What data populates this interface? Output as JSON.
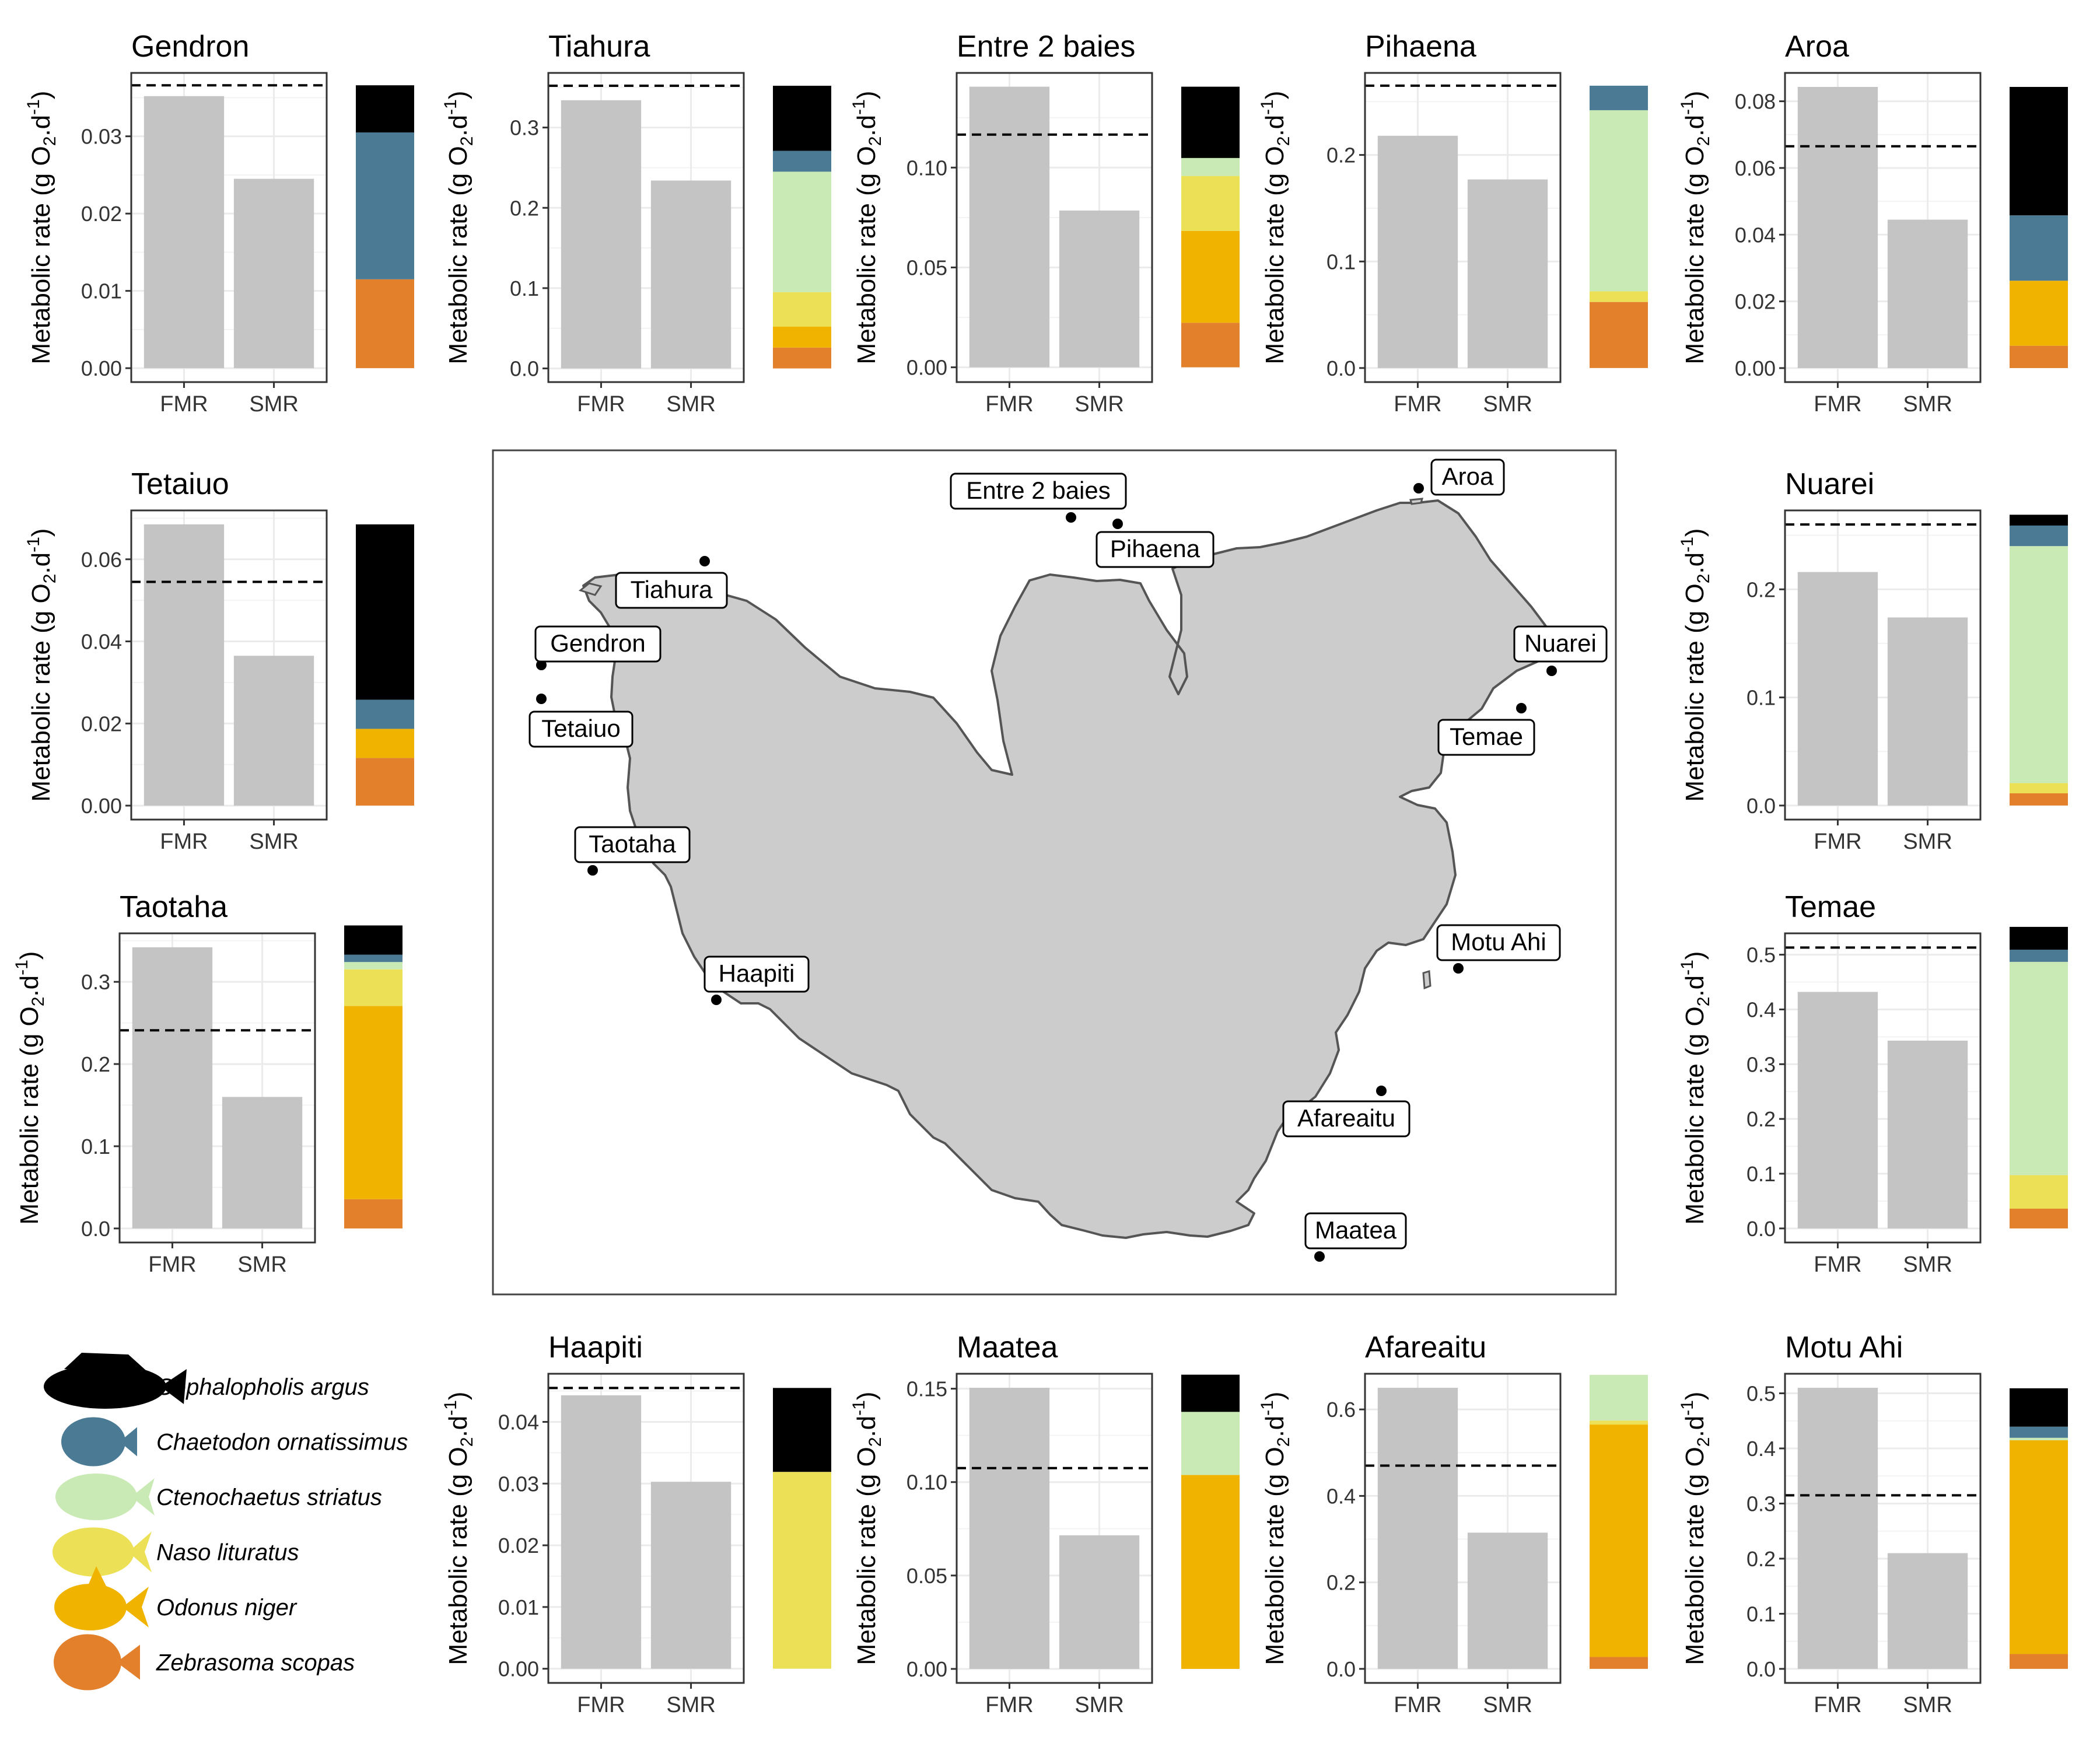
{
  "colors": {
    "cephalopholis_argus": "#000000",
    "chaetodon_ornatissimus": "#4a7a94",
    "ctenochaetus_striatus": "#c9eab4",
    "naso_lituratus": "#ece056",
    "odonus_niger": "#f0b400",
    "zebrasoma_scopas": "#e2802c",
    "bar_fill": "#c4c4c4",
    "land_fill": "#cccccc",
    "land_stroke": "#555555"
  },
  "legend": {
    "items": [
      {
        "name": "Cephalopholis argus",
        "key": "cephalopholis_argus",
        "icon": "grouper-icon"
      },
      {
        "name": "Chaetodon ornatissimus",
        "key": "chaetodon_ornatissimus",
        "icon": "butterflyfish-icon"
      },
      {
        "name": "Ctenochaetus striatus",
        "key": "ctenochaetus_striatus",
        "icon": "surgeonfish-icon"
      },
      {
        "name": "Naso lituratus",
        "key": "naso_lituratus",
        "icon": "unicornfish-icon"
      },
      {
        "name": "Odonus niger",
        "key": "odonus_niger",
        "icon": "triggerfish-icon"
      },
      {
        "name": "Zebrasoma scopas",
        "key": "zebrasoma_scopas",
        "icon": "tang-icon"
      }
    ]
  },
  "map": {
    "sites": [
      "Entre 2 baies",
      "Aroa",
      "Pihaena",
      "Tiahura",
      "Gendron",
      "Tetaiuo",
      "Nuarei",
      "Temae",
      "Taotaha",
      "Haapiti",
      "Motu Ahi",
      "Afareaitu",
      "Maatea"
    ]
  },
  "chart_data": [
    {
      "type": "bar",
      "title": "Gendron",
      "categories": [
        "FMR",
        "SMR"
      ],
      "values": [
        0.0352,
        0.0245
      ],
      "reference_line": 0.0366,
      "ylabel": "Metabolic rate (g O2.d-1)",
      "ylim": [
        -0.0018,
        0.0382
      ],
      "yticks": [
        0,
        0.01,
        0.02,
        0.03
      ],
      "tick_labels": [
        "0.00",
        "0.01",
        "0.02",
        "0.03"
      ],
      "composition": [
        {
          "species": "Zebrasoma scopas",
          "value": 0.0115
        },
        {
          "species": "Chaetodon ornatissimus",
          "value": 0.019
        },
        {
          "species": "Cephalopholis argus",
          "value": 0.0061
        }
      ]
    },
    {
      "type": "bar",
      "title": "Tiahura",
      "categories": [
        "FMR",
        "SMR"
      ],
      "values": [
        0.334,
        0.234
      ],
      "reference_line": 0.352,
      "ylabel": "Metabolic rate (g O2.d-1)",
      "ylim": [
        -0.017,
        0.368
      ],
      "yticks": [
        0,
        0.1,
        0.2,
        0.3
      ],
      "tick_labels": [
        "0.0",
        "0.1",
        "0.2",
        "0.3"
      ],
      "composition": [
        {
          "species": "Zebrasoma scopas",
          "value": 0.026
        },
        {
          "species": "Odonus niger",
          "value": 0.026
        },
        {
          "species": "Naso lituratus",
          "value": 0.043
        },
        {
          "species": "Ctenochaetus striatus",
          "value": 0.15
        },
        {
          "species": "Chaetodon ornatissimus",
          "value": 0.026
        },
        {
          "species": "Cephalopholis argus",
          "value": 0.081
        }
      ]
    },
    {
      "type": "bar",
      "title": "Entre 2 baies",
      "categories": [
        "FMR",
        "SMR"
      ],
      "values": [
        0.1405,
        0.0785
      ],
      "reference_line": 0.1165,
      "ylabel": "Metabolic rate (g O2.d-1)",
      "ylim": [
        -0.0074,
        0.1474
      ],
      "yticks": [
        0,
        0.05,
        0.1
      ],
      "tick_labels": [
        "0.00",
        "0.05",
        "0.10"
      ],
      "composition": [
        {
          "species": "Zebrasoma scopas",
          "value": 0.0223
        },
        {
          "species": "Odonus niger",
          "value": 0.046
        },
        {
          "species": "Naso lituratus",
          "value": 0.0275
        },
        {
          "species": "Ctenochaetus striatus",
          "value": 0.009
        },
        {
          "species": "Cephalopholis argus",
          "value": 0.0357
        }
      ]
    },
    {
      "type": "bar",
      "title": "Pihaena",
      "categories": [
        "FMR",
        "SMR"
      ],
      "values": [
        0.218,
        0.177
      ],
      "reference_line": 0.265,
      "ylabel": "Metabolic rate (g O2.d-1)",
      "ylim": [
        -0.0132,
        0.277
      ],
      "yticks": [
        0,
        0.1,
        0.2
      ],
      "tick_labels": [
        "0.0",
        "0.1",
        "0.2"
      ],
      "composition": [
        {
          "species": "Zebrasoma scopas",
          "value": 0.062
        },
        {
          "species": "Naso lituratus",
          "value": 0.01
        },
        {
          "species": "Ctenochaetus striatus",
          "value": 0.17
        },
        {
          "species": "Chaetodon ornatissimus",
          "value": 0.023
        }
      ]
    },
    {
      "type": "bar",
      "title": "Aroa",
      "categories": [
        "FMR",
        "SMR"
      ],
      "values": [
        0.0843,
        0.0445
      ],
      "reference_line": 0.0665,
      "ylabel": "Metabolic rate (g O2.d-1)",
      "ylim": [
        -0.0042,
        0.0885
      ],
      "yticks": [
        0,
        0.02,
        0.04,
        0.06,
        0.08
      ],
      "tick_labels": [
        "0.00",
        "0.02",
        "0.04",
        "0.06",
        "0.08"
      ],
      "composition": [
        {
          "species": "Zebrasoma scopas",
          "value": 0.0067
        },
        {
          "species": "Odonus niger",
          "value": 0.0195
        },
        {
          "species": "Chaetodon ornatissimus",
          "value": 0.0196
        },
        {
          "species": "Cephalopholis argus",
          "value": 0.0385
        }
      ]
    },
    {
      "type": "bar",
      "title": "Tetaiuo",
      "categories": [
        "FMR",
        "SMR"
      ],
      "values": [
        0.0685,
        0.0365
      ],
      "reference_line": 0.0545,
      "ylabel": "Metabolic rate (g O2.d-1)",
      "ylim": [
        -0.0034,
        0.0719
      ],
      "yticks": [
        0,
        0.02,
        0.04,
        0.06
      ],
      "tick_labels": [
        "0.00",
        "0.02",
        "0.04",
        "0.06"
      ],
      "composition": [
        {
          "species": "Zebrasoma scopas",
          "value": 0.0116
        },
        {
          "species": "Odonus niger",
          "value": 0.0071
        },
        {
          "species": "Chaetodon ornatissimus",
          "value": 0.0071
        },
        {
          "species": "Cephalopholis argus",
          "value": 0.0427
        }
      ]
    },
    {
      "type": "bar",
      "title": "Nuarei",
      "categories": [
        "FMR",
        "SMR"
      ],
      "values": [
        0.216,
        0.174
      ],
      "reference_line": 0.26,
      "ylabel": "Metabolic rate (g O2.d-1)",
      "ylim": [
        -0.013,
        0.273
      ],
      "yticks": [
        0,
        0.1,
        0.2
      ],
      "tick_labels": [
        "0.0",
        "0.1",
        "0.2"
      ],
      "composition": [
        {
          "species": "Zebrasoma scopas",
          "value": 0.0113
        },
        {
          "species": "Naso lituratus",
          "value": 0.0094
        },
        {
          "species": "Ctenochaetus striatus",
          "value": 0.2193
        },
        {
          "species": "Chaetodon ornatissimus",
          "value": 0.019
        },
        {
          "species": "Cephalopholis argus",
          "value": 0.01
        }
      ]
    },
    {
      "type": "bar",
      "title": "Taotaha",
      "categories": [
        "FMR",
        "SMR"
      ],
      "values": [
        0.342,
        0.16
      ],
      "reference_line": 0.241,
      "ylabel": "Metabolic rate (g O2.d-1)",
      "ylim": [
        -0.0171,
        0.359
      ],
      "yticks": [
        0,
        0.1,
        0.2,
        0.3
      ],
      "tick_labels": [
        "0.0",
        "0.1",
        "0.2",
        "0.3"
      ],
      "composition": [
        {
          "species": "Zebrasoma scopas",
          "value": 0.0356
        },
        {
          "species": "Odonus niger",
          "value": 0.235
        },
        {
          "species": "Naso lituratus",
          "value": 0.0446
        },
        {
          "species": "Ctenochaetus striatus",
          "value": 0.0089
        },
        {
          "species": "Chaetodon ornatissimus",
          "value": 0.0089
        },
        {
          "species": "Cephalopholis argus",
          "value": 0.0356
        }
      ]
    },
    {
      "type": "bar",
      "title": "Temae",
      "categories": [
        "FMR",
        "SMR"
      ],
      "values": [
        0.432,
        0.343
      ],
      "reference_line": 0.513,
      "ylabel": "Metabolic rate (g O2.d-1)",
      "ylim": [
        -0.0257,
        0.539
      ],
      "yticks": [
        0,
        0.1,
        0.2,
        0.3,
        0.4,
        0.5
      ],
      "tick_labels": [
        "0.0",
        "0.1",
        "0.2",
        "0.3",
        "0.4",
        "0.5"
      ],
      "composition": [
        {
          "species": "Zebrasoma scopas",
          "value": 0.0361
        },
        {
          "species": "Naso lituratus",
          "value": 0.0612
        },
        {
          "species": "Ctenochaetus striatus",
          "value": 0.3896
        },
        {
          "species": "Chaetodon ornatissimus",
          "value": 0.0222
        },
        {
          "species": "Cephalopholis argus",
          "value": 0.0417
        }
      ]
    },
    {
      "type": "bar",
      "title": "Haapiti",
      "categories": [
        "FMR",
        "SMR"
      ],
      "values": [
        0.0443,
        0.0303
      ],
      "reference_line": 0.0455,
      "ylabel": "Metabolic rate (g O2.d-1)",
      "ylim": [
        -0.0023,
        0.0478
      ],
      "yticks": [
        0,
        0.01,
        0.02,
        0.03,
        0.04
      ],
      "tick_labels": [
        "0.00",
        "0.01",
        "0.02",
        "0.03",
        "0.04"
      ],
      "composition": [
        {
          "species": "Naso lituratus",
          "value": 0.0319
        },
        {
          "species": "Cephalopholis argus",
          "value": 0.0136
        }
      ]
    },
    {
      "type": "bar",
      "title": "Maatea",
      "categories": [
        "FMR",
        "SMR"
      ],
      "values": [
        0.1505,
        0.0715
      ],
      "reference_line": 0.1075,
      "ylabel": "Metabolic rate (g O2.d-1)",
      "ylim": [
        -0.0075,
        0.158
      ],
      "yticks": [
        0,
        0.05,
        0.1,
        0.15
      ],
      "tick_labels": [
        "0.00",
        "0.05",
        "0.10",
        "0.15"
      ],
      "composition": [
        {
          "species": "Odonus niger",
          "value": 0.1038
        },
        {
          "species": "Ctenochaetus striatus",
          "value": 0.0338
        },
        {
          "species": "Cephalopholis argus",
          "value": 0.0199
        }
      ]
    },
    {
      "type": "bar",
      "title": "Afareaitu",
      "categories": [
        "FMR",
        "SMR"
      ],
      "values": [
        0.65,
        0.315
      ],
      "reference_line": 0.47,
      "ylabel": "Metabolic rate (g O2.d-1)",
      "ylim": [
        -0.0325,
        0.6825
      ],
      "yticks": [
        0,
        0.2,
        0.4,
        0.6
      ],
      "tick_labels": [
        "0.0",
        "0.2",
        "0.4",
        "0.6"
      ],
      "composition": [
        {
          "species": "Zebrasoma scopas",
          "value": 0.0276
        },
        {
          "species": "Odonus niger",
          "value": 0.5374
        },
        {
          "species": "Naso lituratus",
          "value": 0.0092
        },
        {
          "species": "Ctenochaetus striatus",
          "value": 0.1058
        }
      ]
    },
    {
      "type": "bar",
      "title": "Motu Ahi",
      "categories": [
        "FMR",
        "SMR"
      ],
      "values": [
        0.51,
        0.21
      ],
      "reference_line": 0.315,
      "ylabel": "Metabolic rate (g O2.d-1)",
      "ylim": [
        -0.0255,
        0.5355
      ],
      "yticks": [
        0,
        0.1,
        0.2,
        0.3,
        0.4,
        0.5
      ],
      "tick_labels": [
        "0.0",
        "0.1",
        "0.2",
        "0.3",
        "0.4",
        "0.5"
      ],
      "composition": [
        {
          "species": "Zebrasoma scopas",
          "value": 0.0269
        },
        {
          "species": "Odonus niger",
          "value": 0.3879
        },
        {
          "species": "Chaetodon ornatissimus",
          "value": 0.0202
        },
        {
          "species": "Ctenochaetus striatus",
          "value": 0.0045
        },
        {
          "species": "Cephalopholis argus",
          "value": 0.0696
        }
      ]
    }
  ]
}
